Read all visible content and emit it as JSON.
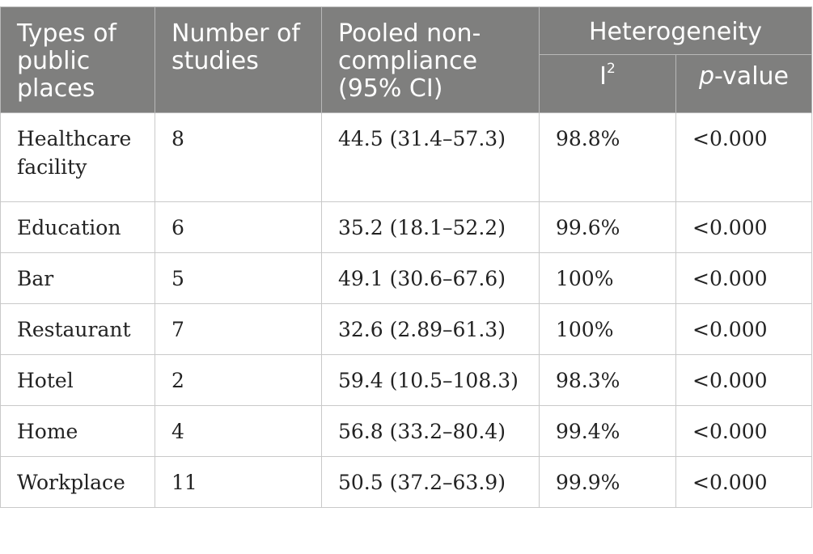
{
  "headers": {
    "type": "Types of public places",
    "number": "Number of studies",
    "pooled": "Pooled non-compliance (95% CI)",
    "heterogeneity": "Heterogeneity",
    "i2_base": "I",
    "i2_sup": "2",
    "p_italic": "p",
    "p_rest": "-value"
  },
  "rows": [
    {
      "type": "Healthcare facility",
      "number": "8",
      "pooled": "44.5 (31.4–57.3)",
      "i2": "98.8%",
      "p": "<0.000"
    },
    {
      "type": "Education",
      "number": "6",
      "pooled": "35.2 (18.1–52.2)",
      "i2": "99.6%",
      "p": "<0.000"
    },
    {
      "type": "Bar",
      "number": "5",
      "pooled": "49.1 (30.6–67.6)",
      "i2": "100%",
      "p": "<0.000"
    },
    {
      "type": "Restaurant",
      "number": "7",
      "pooled": "32.6 (2.89–61.3)",
      "i2": "100%",
      "p": "<0.000"
    },
    {
      "type": "Hotel",
      "number": "2",
      "pooled": "59.4 (10.5–108.3)",
      "i2": "98.3%",
      "p": "<0.000"
    },
    {
      "type": "Home",
      "number": "4",
      "pooled": "56.8 (33.2–80.4)",
      "i2": "99.4%",
      "p": "<0.000"
    },
    {
      "type": "Workplace",
      "number": "11",
      "pooled": "50.5 (37.2–63.9)",
      "i2": "99.9%",
      "p": "<0.000"
    }
  ],
  "colors": {
    "header_bg": "#7f7f7e",
    "header_text": "#ffffff",
    "border": "#c9c9c9"
  }
}
